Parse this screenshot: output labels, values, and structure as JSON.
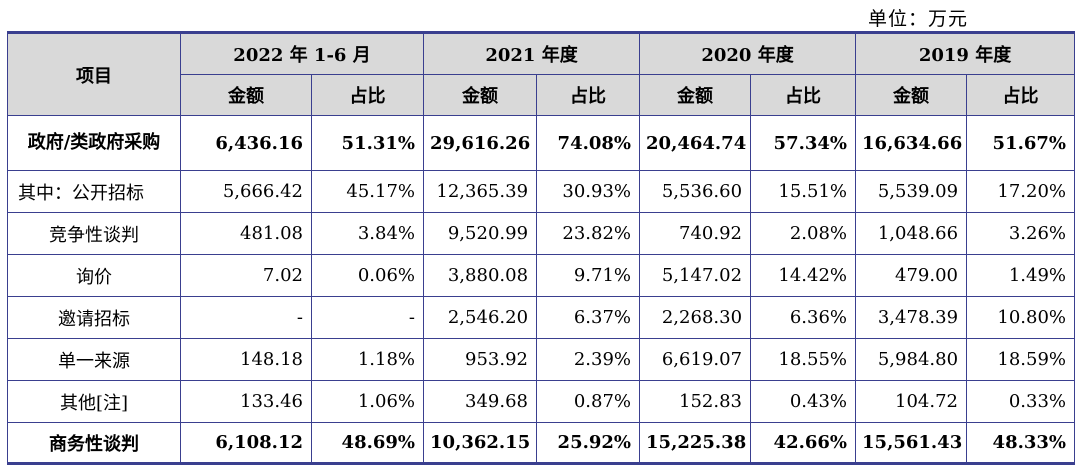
{
  "unit_label": "单位：万元",
  "header": {
    "item": "项目",
    "periods": [
      "2022 年 1-6 月",
      "2021 年度",
      "2020 年度",
      "2019 年度"
    ],
    "amount": "金额",
    "ratio": "占比"
  },
  "rows": [
    {
      "label": "政府/类政府采购",
      "values": [
        "6,436.16",
        "51.31%",
        "29,616.26",
        "74.08%",
        "20,464.74",
        "57.34%",
        "16,634.66",
        "51.67%"
      ]
    },
    {
      "label": "其中：公开招标",
      "values": [
        "5,666.42",
        "45.17%",
        "12,365.39",
        "30.93%",
        "5,536.60",
        "15.51%",
        "5,539.09",
        "17.20%"
      ]
    },
    {
      "label": "竞争性谈判",
      "values": [
        "481.08",
        "3.84%",
        "9,520.99",
        "23.82%",
        "740.92",
        "2.08%",
        "1,048.66",
        "3.26%"
      ]
    },
    {
      "label": "询价",
      "values": [
        "7.02",
        "0.06%",
        "3,880.08",
        "9.71%",
        "5,147.02",
        "14.42%",
        "479.00",
        "1.49%"
      ]
    },
    {
      "label": "邀请招标",
      "values": [
        "-",
        "-",
        "2,546.20",
        "6.37%",
        "2,268.30",
        "6.36%",
        "3,478.39",
        "10.80%"
      ]
    },
    {
      "label": "单一来源",
      "values": [
        "148.18",
        "1.18%",
        "953.92",
        "2.39%",
        "6,619.07",
        "18.55%",
        "5,984.80",
        "18.59%"
      ]
    },
    {
      "label": "其他[注]",
      "values": [
        "133.46",
        "1.06%",
        "349.68",
        "0.87%",
        "152.83",
        "0.43%",
        "104.72",
        "0.33%"
      ]
    },
    {
      "label": "商务性谈判",
      "values": [
        "6,108.12",
        "48.69%",
        "10,362.15",
        "25.92%",
        "15,225.38",
        "42.66%",
        "15,561.43",
        "48.33%"
      ]
    }
  ]
}
